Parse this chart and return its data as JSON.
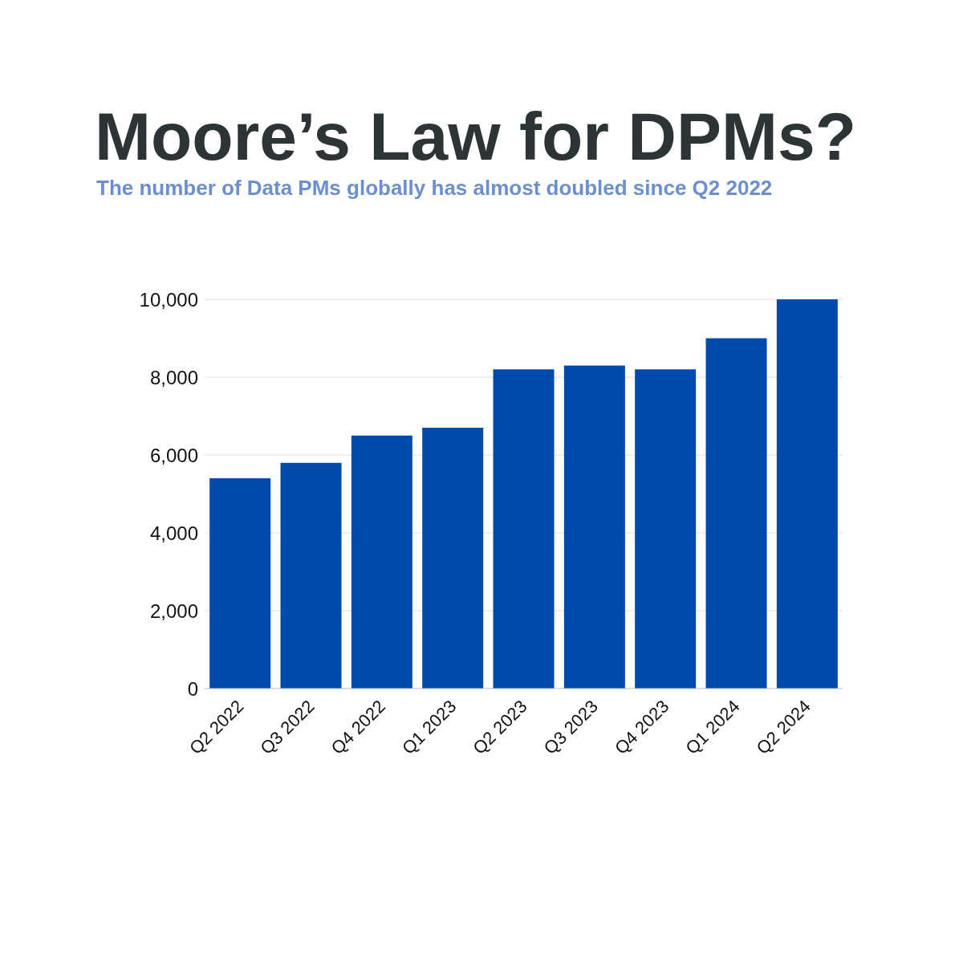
{
  "chart_data": {
    "type": "bar",
    "title": "Moore’s Law for DPMs?",
    "subtitle": "The number of Data PMs globally has almost doubled since Q2 2022",
    "categories": [
      "Q2 2022",
      "Q3 2022",
      "Q4 2022",
      "Q1 2023",
      "Q2 2023",
      "Q3 2023",
      "Q4 2023",
      "Q1 2024",
      "Q2 2024"
    ],
    "values": [
      5400,
      5800,
      6500,
      6700,
      8200,
      8300,
      8200,
      9000,
      10000
    ],
    "color": "#004aad",
    "ylim": [
      0,
      10000
    ],
    "yticks": [
      0,
      {
        "value": 2000,
        "label": "2,000"
      },
      {
        "value": 4000,
        "label": "4,000"
      },
      {
        "value": 6000,
        "label": "6,000"
      },
      {
        "value": 8000,
        "label": "8,000"
      },
      {
        "value": 10000,
        "label": "10,000"
      }
    ],
    "grid": "y"
  }
}
